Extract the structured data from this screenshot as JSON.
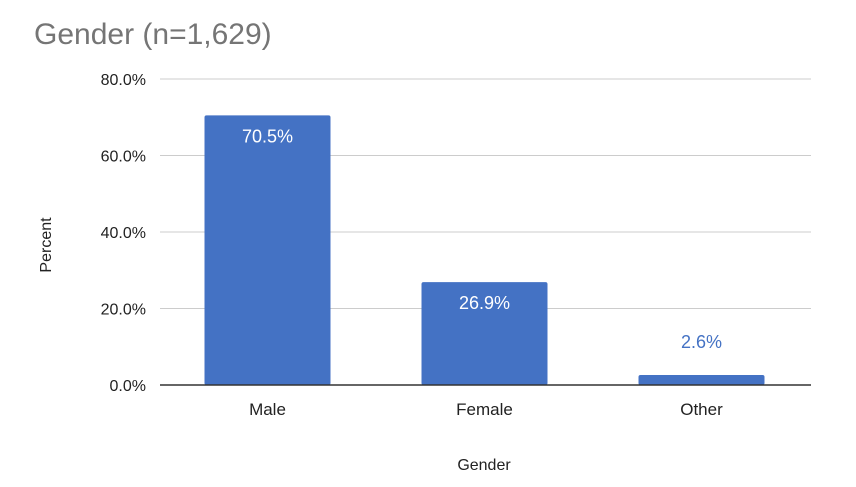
{
  "chart_data": {
    "type": "bar",
    "title": "Gender (n=1,629)",
    "xlabel": "Gender",
    "ylabel": "Percent",
    "categories": [
      "Male",
      "Female",
      "Other"
    ],
    "values": [
      70.5,
      26.9,
      2.6
    ],
    "value_labels": [
      "70.5%",
      "26.9%",
      "2.6%"
    ],
    "ylim": [
      0,
      80
    ],
    "yticks": [
      0,
      20,
      40,
      60,
      80
    ],
    "ytick_labels": [
      "0.0%",
      "20.0%",
      "40.0%",
      "60.0%",
      "80.0%"
    ],
    "grid": true,
    "legend": "none",
    "colors": {
      "bar": "#4472C4",
      "label_inside": "#ffffff",
      "label_outside": "#4472C4",
      "title": "#757575",
      "axis_text": "#222222",
      "gridline": "#cccccc",
      "axis_line": "#333333"
    }
  }
}
